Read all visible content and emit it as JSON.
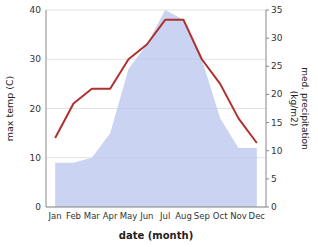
{
  "chart_data": {
    "type": "line",
    "categories": [
      "Jan",
      "Feb",
      "Mar",
      "Apr",
      "May",
      "Jun",
      "Jul",
      "Aug",
      "Sep",
      "Oct",
      "Nov",
      "Dec"
    ],
    "series": [
      {
        "type": "area",
        "color": "#b8c4ee",
        "values": [
          9,
          9,
          10,
          15,
          28,
          33,
          40,
          38,
          30,
          18,
          12,
          12
        ]
      },
      {
        "type": "line",
        "color": "#b03030",
        "values": [
          14,
          21,
          24,
          24,
          30,
          33,
          38,
          38,
          30,
          25,
          18,
          13
        ]
      }
    ],
    "x_label": "date (month)",
    "y_label": "max temp (C)",
    "y2_label": "med. precipitation\n(kg/m2)",
    "ylim": [
      0,
      40
    ],
    "yticks": [
      0,
      10,
      20,
      30,
      40
    ],
    "y2lim": [
      0,
      35
    ],
    "y2ticks": [
      0,
      5,
      10,
      15,
      20,
      25,
      30,
      35
    ],
    "grid": true
  }
}
